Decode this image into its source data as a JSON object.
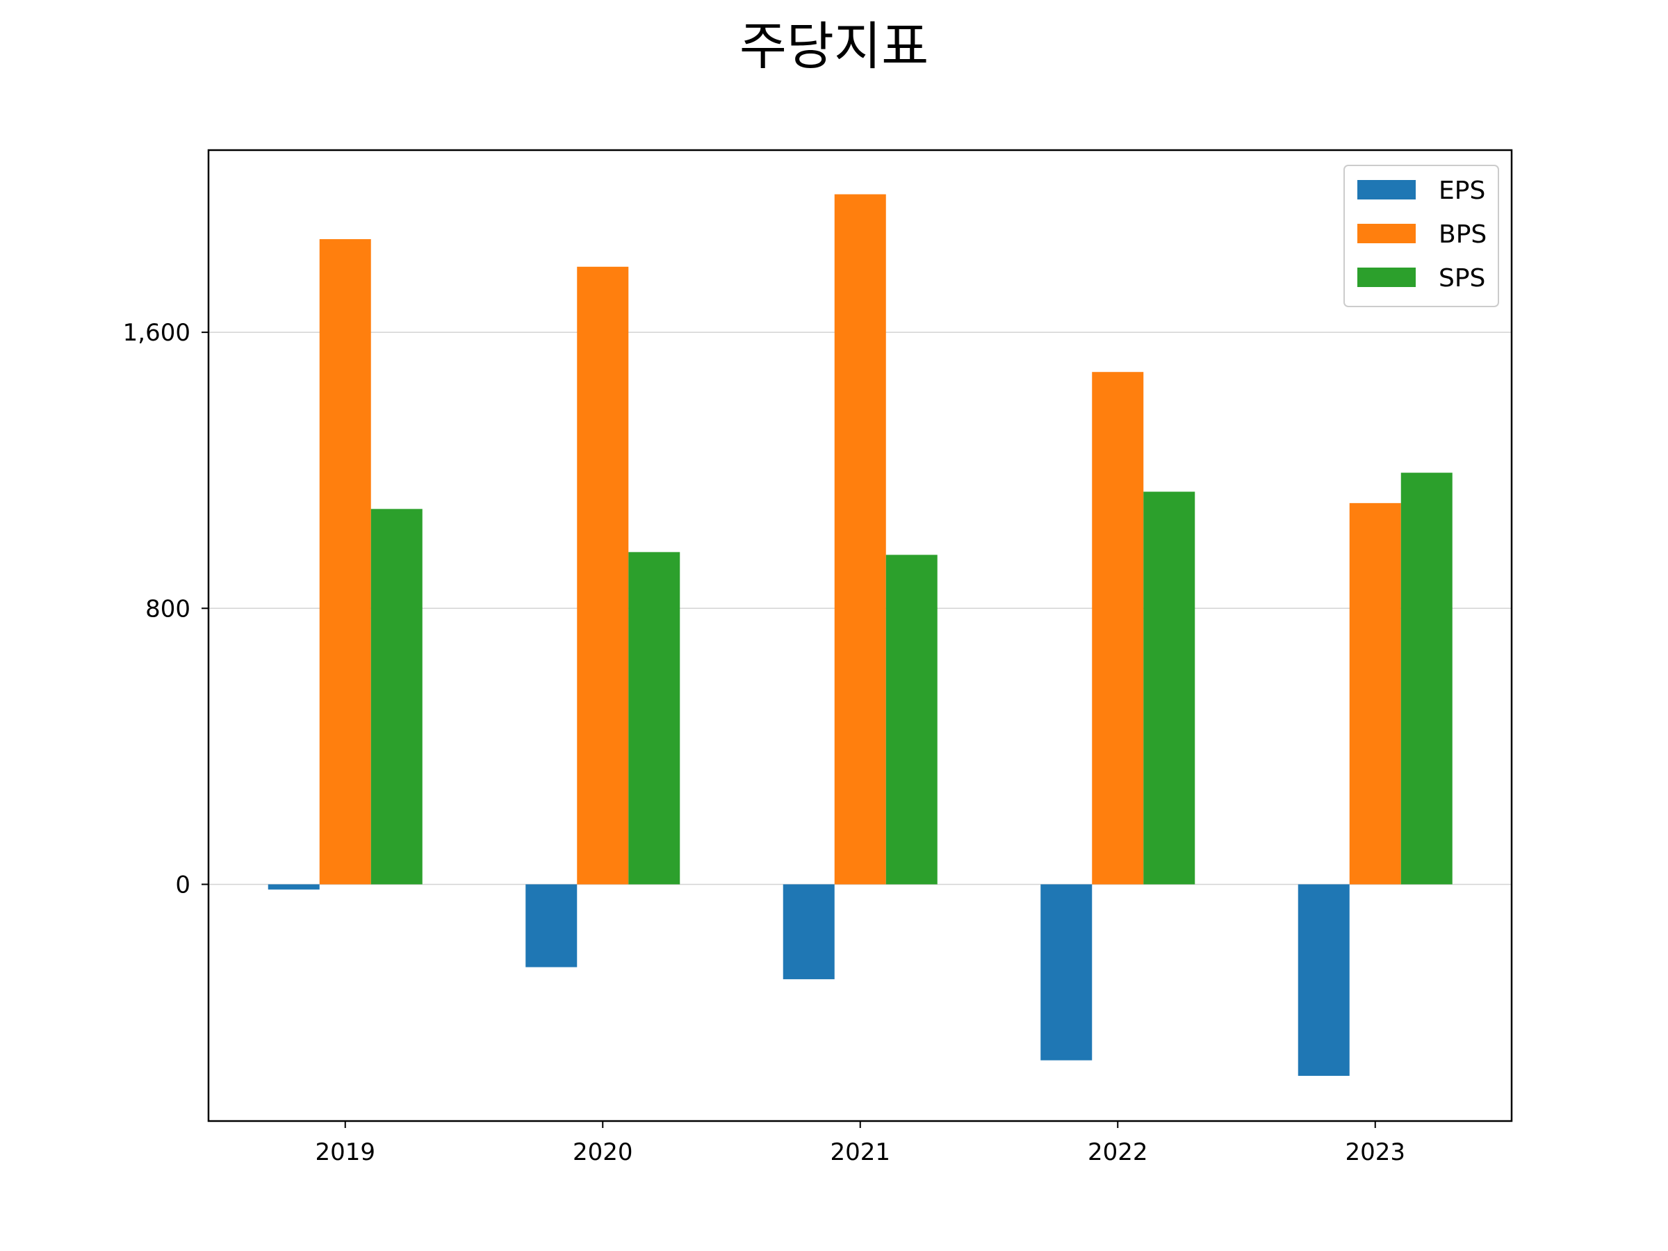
{
  "chart_data": {
    "type": "bar",
    "title": "주당지표",
    "xlabel": "",
    "ylabel": "",
    "categories": [
      "2019",
      "2020",
      "2021",
      "2022",
      "2023"
    ],
    "series": [
      {
        "name": "EPS",
        "color": "#1f77b4",
        "values": [
          -15,
          -240,
          -275,
          -510,
          -555
        ]
      },
      {
        "name": "BPS",
        "color": "#ff7f0e",
        "values": [
          1870,
          1790,
          2000,
          1485,
          1105
        ]
      },
      {
        "name": "SPS",
        "color": "#2ca02c",
        "values": [
          1088,
          963,
          955,
          1138,
          1193
        ]
      }
    ],
    "ylim": [
      -686,
      2128
    ],
    "yticks": [
      0,
      800,
      1600
    ],
    "ytick_labels": [
      "0",
      "800",
      "1,600"
    ],
    "grid": "y",
    "legend_position": "top-right"
  }
}
